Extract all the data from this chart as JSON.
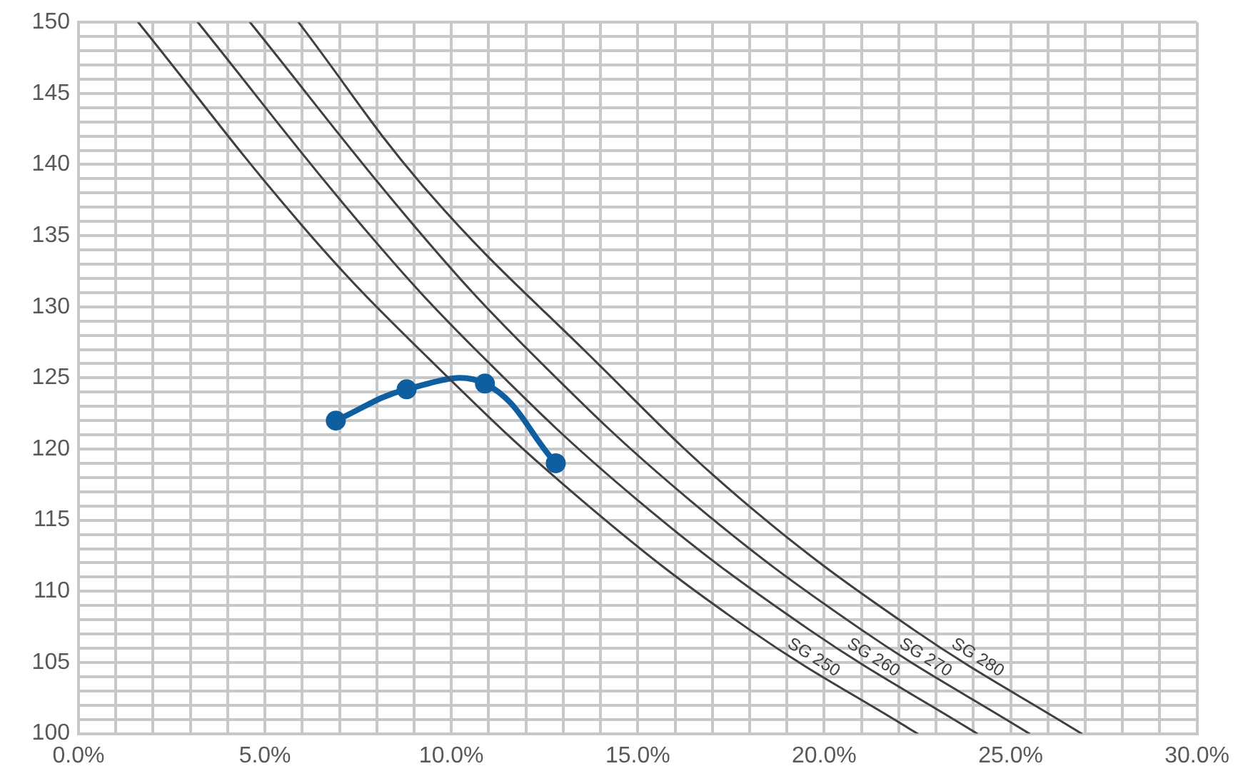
{
  "chart_data": {
    "type": "line",
    "xlim": [
      0,
      30
    ],
    "ylim": [
      100,
      150
    ],
    "xticks": [
      {
        "value": 0,
        "label": "0.0%"
      },
      {
        "value": 1,
        "label": null
      },
      {
        "value": 2,
        "label": null
      },
      {
        "value": 3,
        "label": null
      },
      {
        "value": 4,
        "label": null
      },
      {
        "value": 5,
        "label": "5.0%"
      },
      {
        "value": 6,
        "label": null
      },
      {
        "value": 7,
        "label": null
      },
      {
        "value": 8,
        "label": null
      },
      {
        "value": 9,
        "label": null
      },
      {
        "value": 10,
        "label": "10.0%"
      },
      {
        "value": 11,
        "label": null
      },
      {
        "value": 12,
        "label": null
      },
      {
        "value": 13,
        "label": null
      },
      {
        "value": 14,
        "label": null
      },
      {
        "value": 15,
        "label": "15.0%"
      },
      {
        "value": 16,
        "label": null
      },
      {
        "value": 17,
        "label": null
      },
      {
        "value": 18,
        "label": null
      },
      {
        "value": 19,
        "label": null
      },
      {
        "value": 20,
        "label": "20.0%"
      },
      {
        "value": 21,
        "label": null
      },
      {
        "value": 22,
        "label": null
      },
      {
        "value": 23,
        "label": null
      },
      {
        "value": 24,
        "label": null
      },
      {
        "value": 25,
        "label": "25.0%"
      },
      {
        "value": 26,
        "label": null
      },
      {
        "value": 27,
        "label": null
      },
      {
        "value": 28,
        "label": null
      },
      {
        "value": 29,
        "label": null
      },
      {
        "value": 30,
        "label": "30.0%"
      }
    ],
    "yticks": [
      100,
      {
        "value": 101,
        "label": null
      },
      {
        "value": 102,
        "label": null
      },
      {
        "value": 103,
        "label": null
      },
      {
        "value": 104,
        "label": null
      },
      105,
      {
        "value": 106,
        "label": null
      },
      {
        "value": 107,
        "label": null
      },
      {
        "value": 108,
        "label": null
      },
      {
        "value": 109,
        "label": null
      },
      110,
      {
        "value": 111,
        "label": null
      },
      {
        "value": 112,
        "label": null
      },
      {
        "value": 113,
        "label": null
      },
      {
        "value": 114,
        "label": null
      },
      115,
      {
        "value": 116,
        "label": null
      },
      {
        "value": 117,
        "label": null
      },
      {
        "value": 118,
        "label": null
      },
      {
        "value": 119,
        "label": null
      },
      120,
      {
        "value": 121,
        "label": null
      },
      {
        "value": 122,
        "label": null
      },
      {
        "value": 123,
        "label": null
      },
      {
        "value": 124,
        "label": null
      },
      125,
      {
        "value": 126,
        "label": null
      },
      {
        "value": 127,
        "label": null
      },
      {
        "value": 128,
        "label": null
      },
      {
        "value": 129,
        "label": null
      },
      130,
      {
        "value": 131,
        "label": null
      },
      {
        "value": 132,
        "label": null
      },
      {
        "value": 133,
        "label": null
      },
      {
        "value": 134,
        "label": null
      },
      135,
      {
        "value": 136,
        "label": null
      },
      {
        "value": 137,
        "label": null
      },
      {
        "value": 138,
        "label": null
      },
      {
        "value": 139,
        "label": null
      },
      140,
      {
        "value": 141,
        "label": null
      },
      {
        "value": 142,
        "label": null
      },
      {
        "value": 143,
        "label": null
      },
      {
        "value": 144,
        "label": null
      },
      145,
      {
        "value": 146,
        "label": null
      },
      {
        "value": 147,
        "label": null
      },
      {
        "value": 148,
        "label": null
      },
      {
        "value": 149,
        "label": null
      },
      150
    ],
    "grid": true,
    "legend": false,
    "marker": "none",
    "line_style": "solid",
    "series": [
      {
        "name": "SG 250",
        "color": "#404040",
        "x": [
          1.6,
          6.0,
          9.3,
          13.5,
          18.0,
          22.5
        ],
        "values": [
          150,
          135.7,
          126.6,
          116.4,
          107.3,
          100
        ]
      },
      {
        "name": "SG 260",
        "color": "#404040",
        "x": [
          3.2,
          7.6,
          10.8,
          15.0,
          19.6,
          24.1
        ],
        "values": [
          150,
          135.7,
          126.6,
          116.4,
          107.3,
          100
        ]
      },
      {
        "name": "SG 270",
        "color": "#404040",
        "x": [
          4.6,
          9.0,
          12.2,
          16.4,
          21.0,
          25.5
        ],
        "values": [
          150,
          135.7,
          126.6,
          116.4,
          107.3,
          100
        ]
      },
      {
        "name": "SG 280",
        "color": "#404040",
        "x": [
          5.9,
          9.4,
          13.7,
          17.8,
          22.4,
          26.9
        ],
        "values": [
          150,
          138,
          126.6,
          116.4,
          107.3,
          100
        ]
      },
      {
        "color": "#0f5fa0",
        "marker": "circle",
        "x": [
          6.9,
          8.8,
          10.9,
          12.8
        ],
        "values": [
          122,
          124.2,
          124.6,
          119
        ]
      }
    ]
  }
}
